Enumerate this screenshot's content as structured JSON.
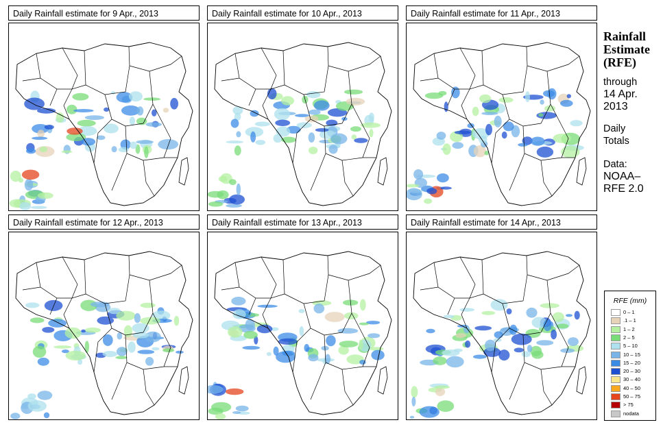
{
  "panels": [
    {
      "title": "Daily Rainfall estimate for  9 Apr., 2013"
    },
    {
      "title": "Daily Rainfall estimate for  10 Apr., 2013"
    },
    {
      "title": "Daily Rainfall estimate for  11 Apr., 2013"
    },
    {
      "title": "Daily Rainfall estimate for  12 Apr., 2013"
    },
    {
      "title": "Daily Rainfall estimate for  13 Apr., 2013"
    },
    {
      "title": "Daily Rainfall estimate for  14 Apr., 2013"
    }
  ],
  "side": {
    "title_line1": "Rainfall",
    "title_line2": "Estimate",
    "title_line3": "(RFE)",
    "through": "through",
    "date_line1": "14 Apr.",
    "date_line2": "2013",
    "daily1": "Daily",
    "daily2": "Totals",
    "data1": "Data:",
    "data2": "NOAA–",
    "data3": "RFE 2.0"
  },
  "legend": {
    "title": "RFE (mm)",
    "items": [
      {
        "label": "0 – 1",
        "color": "#ffffff"
      },
      {
        "label": ".1 – 1",
        "color": "#e6d3b8"
      },
      {
        "label": "1 – 2",
        "color": "#b4f0a0"
      },
      {
        "label": "2 – 5",
        "color": "#78dc78"
      },
      {
        "label": "5 – 10",
        "color": "#aee0ee"
      },
      {
        "label": "10 – 15",
        "color": "#78b4e8"
      },
      {
        "label": "15 – 20",
        "color": "#3c8ce6"
      },
      {
        "label": "20 – 30",
        "color": "#1e50d2"
      },
      {
        "label": "30 – 40",
        "color": "#f8e68c"
      },
      {
        "label": "40 – 50",
        "color": "#f8a81e"
      },
      {
        "label": "50 – 75",
        "color": "#e6461e"
      },
      {
        "label": "> 75",
        "color": "#b40000"
      },
      {
        "label": "nodata",
        "color": "#c8c8c8"
      }
    ]
  }
}
